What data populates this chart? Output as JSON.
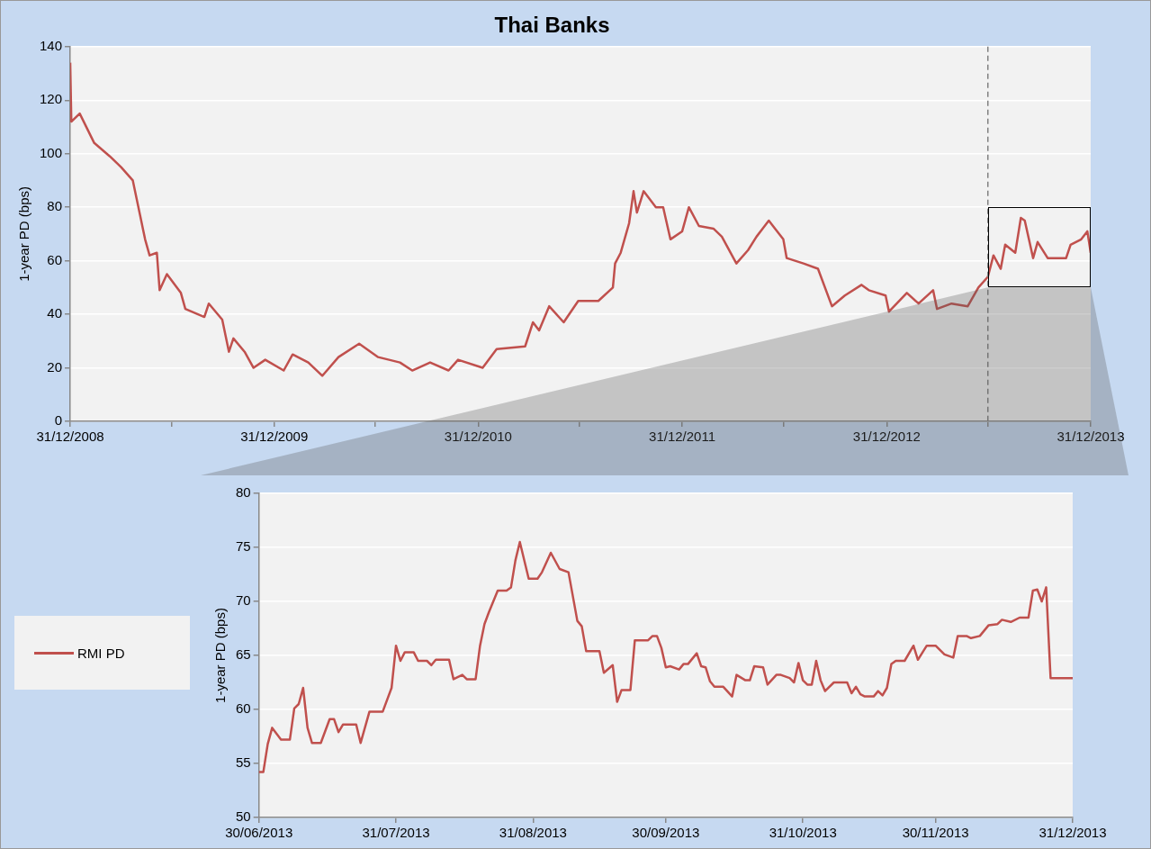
{
  "chart_data": [
    {
      "type": "line",
      "title": "Thai Banks",
      "ylabel": "1-year PD (bps)",
      "xlim": [
        "2008-12-31",
        "2013-12-31"
      ],
      "ylim": [
        0,
        140
      ],
      "yticks": [
        0,
        20,
        40,
        60,
        80,
        100,
        120,
        140
      ],
      "xticks": [
        {
          "value": "2008-12-31",
          "label": "31/12/2008"
        },
        {
          "value": "2009-06-30",
          "label": null
        },
        {
          "value": "2009-12-31",
          "label": "31/12/2009"
        },
        {
          "value": "2010-06-30",
          "label": null
        },
        {
          "value": "2010-12-31",
          "label": "31/12/2010"
        },
        {
          "value": "2011-06-30",
          "label": null
        },
        {
          "value": "2011-12-31",
          "label": "31/12/2011"
        },
        {
          "value": "2012-06-30",
          "label": null
        },
        {
          "value": "2012-12-31",
          "label": "31/12/2012"
        },
        {
          "value": "2013-06-30",
          "label": null
        },
        {
          "value": "2013-12-31",
          "label": "31/12/2013"
        }
      ],
      "grid": "y",
      "ref_lines": [
        {
          "axis": "x",
          "value": "2013-06-30",
          "color": "#808080",
          "line_style": "dashed"
        }
      ],
      "series": [
        {
          "color": "#c0504d",
          "x": [
            "2008-12-31",
            "2009-01-02",
            "2009-01-17",
            "2009-02-12",
            "2009-03-12",
            "2009-04-01",
            "2009-04-22",
            "2009-05-05",
            "2009-05-14",
            "2009-05-22",
            "2009-06-04",
            "2009-06-09",
            "2009-06-22",
            "2009-07-17",
            "2009-07-25",
            "2009-08-28",
            "2009-09-05",
            "2009-09-29",
            "2009-10-11",
            "2009-10-19",
            "2009-11-08",
            "2009-11-24",
            "2009-12-15",
            "2010-01-17",
            "2010-02-02",
            "2010-03-02",
            "2010-03-27",
            "2010-04-25",
            "2010-06-01",
            "2010-07-05",
            "2010-08-13",
            "2010-09-04",
            "2010-10-06",
            "2010-11-08",
            "2010-11-25",
            "2011-01-08",
            "2011-02-02",
            "2011-03-25",
            "2011-04-08",
            "2011-04-19",
            "2011-05-07",
            "2011-06-02",
            "2011-06-28",
            "2011-08-03",
            "2011-08-29",
            "2011-09-02",
            "2011-09-12",
            "2011-09-27",
            "2011-10-05",
            "2011-10-11",
            "2011-10-23",
            "2011-11-14",
            "2011-11-27",
            "2011-12-10",
            "2011-12-31",
            "2012-01-12",
            "2012-01-30",
            "2012-02-25",
            "2012-03-11",
            "2012-04-06",
            "2012-04-27",
            "2012-05-12",
            "2012-06-03",
            "2012-06-29",
            "2012-07-05",
            "2012-08-04",
            "2012-08-30",
            "2012-09-24",
            "2012-10-17",
            "2012-11-16",
            "2012-11-29",
            "2012-12-29",
            "2013-01-04",
            "2013-02-05",
            "2013-02-26",
            "2013-03-24",
            "2013-03-31",
            "2013-04-26",
            "2013-05-25",
            "2013-06-13",
            "2013-06-30",
            "2013-07-10",
            "2013-07-23",
            "2013-07-31",
            "2013-08-18",
            "2013-08-28",
            "2013-09-04",
            "2013-09-19",
            "2013-09-27",
            "2013-10-15",
            "2013-11-17",
            "2013-11-25",
            "2013-12-14",
            "2013-12-25",
            "2013-12-31"
          ],
          "values": [
            134,
            112,
            115,
            104,
            99,
            95,
            90,
            77,
            68,
            62,
            63,
            49,
            55,
            48,
            42,
            39,
            44,
            38,
            26,
            31,
            26,
            20,
            23,
            19,
            25,
            22,
            17,
            24,
            29,
            24,
            22,
            19,
            22,
            19,
            23,
            20,
            27,
            28,
            37,
            34,
            43,
            37,
            45,
            45,
            50,
            59,
            63,
            74,
            86,
            78,
            86,
            80,
            80,
            68,
            71,
            80,
            73,
            72,
            69,
            59,
            64,
            69,
            75,
            68,
            61,
            59,
            57,
            43,
            47,
            51,
            49,
            47,
            41,
            48,
            44,
            49,
            42,
            44,
            43,
            50,
            54,
            62,
            57,
            66,
            63,
            76,
            75,
            61,
            67,
            61,
            61,
            66,
            68,
            71,
            63
          ]
        }
      ]
    },
    {
      "type": "line",
      "ylabel": "1-year PD (bps)",
      "xlim": [
        "2013-06-30",
        "2013-12-31"
      ],
      "ylim": [
        50,
        80
      ],
      "yticks": [
        50,
        55,
        60,
        65,
        70,
        75,
        80
      ],
      "xticks": [
        {
          "value": "2013-06-30",
          "label": "30/06/2013"
        },
        {
          "value": "2013-07-31",
          "label": "31/07/2013"
        },
        {
          "value": "2013-08-31",
          "label": "31/08/2013"
        },
        {
          "value": "2013-09-30",
          "label": "30/09/2013"
        },
        {
          "value": "2013-10-31",
          "label": "31/10/2013"
        },
        {
          "value": "2013-11-30",
          "label": "30/11/2013"
        },
        {
          "value": "2013-12-31",
          "label": "31/12/2013"
        }
      ],
      "grid": "y",
      "legend": "left",
      "series": [
        {
          "name": "RMI PD",
          "color": "#c0504d",
          "x": [
            "2013-06-30",
            "2013-07-01",
            "2013-07-02",
            "2013-07-03",
            "2013-07-05",
            "2013-07-07",
            "2013-07-08",
            "2013-07-09",
            "2013-07-10",
            "2013-07-11",
            "2013-07-12",
            "2013-07-14",
            "2013-07-16",
            "2013-07-17",
            "2013-07-18",
            "2013-07-19",
            "2013-07-22",
            "2013-07-23",
            "2013-07-25",
            "2013-07-28",
            "2013-07-30",
            "2013-07-31",
            "2013-08-01",
            "2013-08-02",
            "2013-08-04",
            "2013-08-05",
            "2013-08-07",
            "2013-08-08",
            "2013-08-09",
            "2013-08-12",
            "2013-08-13",
            "2013-08-15",
            "2013-08-16",
            "2013-08-18",
            "2013-08-19",
            "2013-08-20",
            "2013-08-21",
            "2013-08-23",
            "2013-08-25",
            "2013-08-26",
            "2013-08-27",
            "2013-08-28",
            "2013-08-30",
            "2013-09-01",
            "2013-09-02",
            "2013-09-04",
            "2013-09-06",
            "2013-09-08",
            "2013-09-10",
            "2013-09-11",
            "2013-09-12",
            "2013-09-15",
            "2013-09-16",
            "2013-09-18",
            "2013-09-19",
            "2013-09-20",
            "2013-09-22",
            "2013-09-23",
            "2013-09-26",
            "2013-09-27",
            "2013-09-28",
            "2013-09-29",
            "2013-09-30",
            "2013-10-01",
            "2013-10-03",
            "2013-10-04",
            "2013-10-05",
            "2013-10-07",
            "2013-10-08",
            "2013-10-09",
            "2013-10-10",
            "2013-10-11",
            "2013-10-13",
            "2013-10-15",
            "2013-10-16",
            "2013-10-18",
            "2013-10-19",
            "2013-10-20",
            "2013-10-22",
            "2013-10-23",
            "2013-10-25",
            "2013-10-26",
            "2013-10-28",
            "2013-10-29",
            "2013-10-30",
            "2013-10-31",
            "2013-11-01",
            "2013-11-02",
            "2013-11-03",
            "2013-11-04",
            "2013-11-05",
            "2013-11-07",
            "2013-11-10",
            "2013-11-11",
            "2013-11-12",
            "2013-11-13",
            "2013-11-14",
            "2013-11-16",
            "2013-11-17",
            "2013-11-18",
            "2013-11-19",
            "2013-11-20",
            "2013-11-21",
            "2013-11-23",
            "2013-11-25",
            "2013-11-26",
            "2013-11-28",
            "2013-11-30",
            "2013-12-02",
            "2013-12-04",
            "2013-12-05",
            "2013-12-07",
            "2013-12-08",
            "2013-12-10",
            "2013-12-12",
            "2013-12-14",
            "2013-12-15",
            "2013-12-17",
            "2013-12-19",
            "2013-12-21",
            "2013-12-22",
            "2013-12-23",
            "2013-12-24",
            "2013-12-25",
            "2013-12-26",
            "2013-12-31"
          ],
          "values": [
            54.2,
            54.2,
            56.8,
            58.3,
            57.2,
            57.2,
            60.1,
            60.5,
            62,
            58.3,
            56.9,
            56.9,
            59.1,
            59.1,
            57.9,
            58.6,
            58.6,
            56.9,
            59.8,
            59.8,
            62,
            65.9,
            64.5,
            65.3,
            65.3,
            64.5,
            64.5,
            64.1,
            64.6,
            64.6,
            62.8,
            63.2,
            62.8,
            62.8,
            65.9,
            67.9,
            69,
            71,
            71,
            71.3,
            73.8,
            75.5,
            72.1,
            72.1,
            72.7,
            74.5,
            73,
            72.7,
            68.2,
            67.7,
            65.4,
            65.4,
            63.4,
            64.1,
            60.7,
            61.8,
            61.8,
            66.4,
            66.4,
            66.8,
            66.8,
            65.7,
            63.9,
            64,
            63.7,
            64.2,
            64.2,
            65.2,
            64,
            63.9,
            62.6,
            62.1,
            62.1,
            61.2,
            63.2,
            62.7,
            62.7,
            64,
            63.9,
            62.3,
            63.2,
            63.2,
            62.9,
            62.5,
            64.3,
            62.7,
            62.3,
            62.3,
            64.5,
            62.7,
            61.7,
            62.5,
            62.5,
            61.5,
            62.1,
            61.4,
            61.2,
            61.2,
            61.7,
            61.3,
            62,
            64.2,
            64.5,
            64.5,
            65.9,
            64.6,
            65.9,
            65.9,
            65.1,
            64.8,
            66.8,
            66.8,
            66.6,
            66.8,
            67.8,
            67.9,
            68.3,
            68.1,
            68.5,
            68.5,
            71,
            71.1,
            70,
            71.3,
            62.9,
            62.9
          ]
        }
      ]
    }
  ]
}
